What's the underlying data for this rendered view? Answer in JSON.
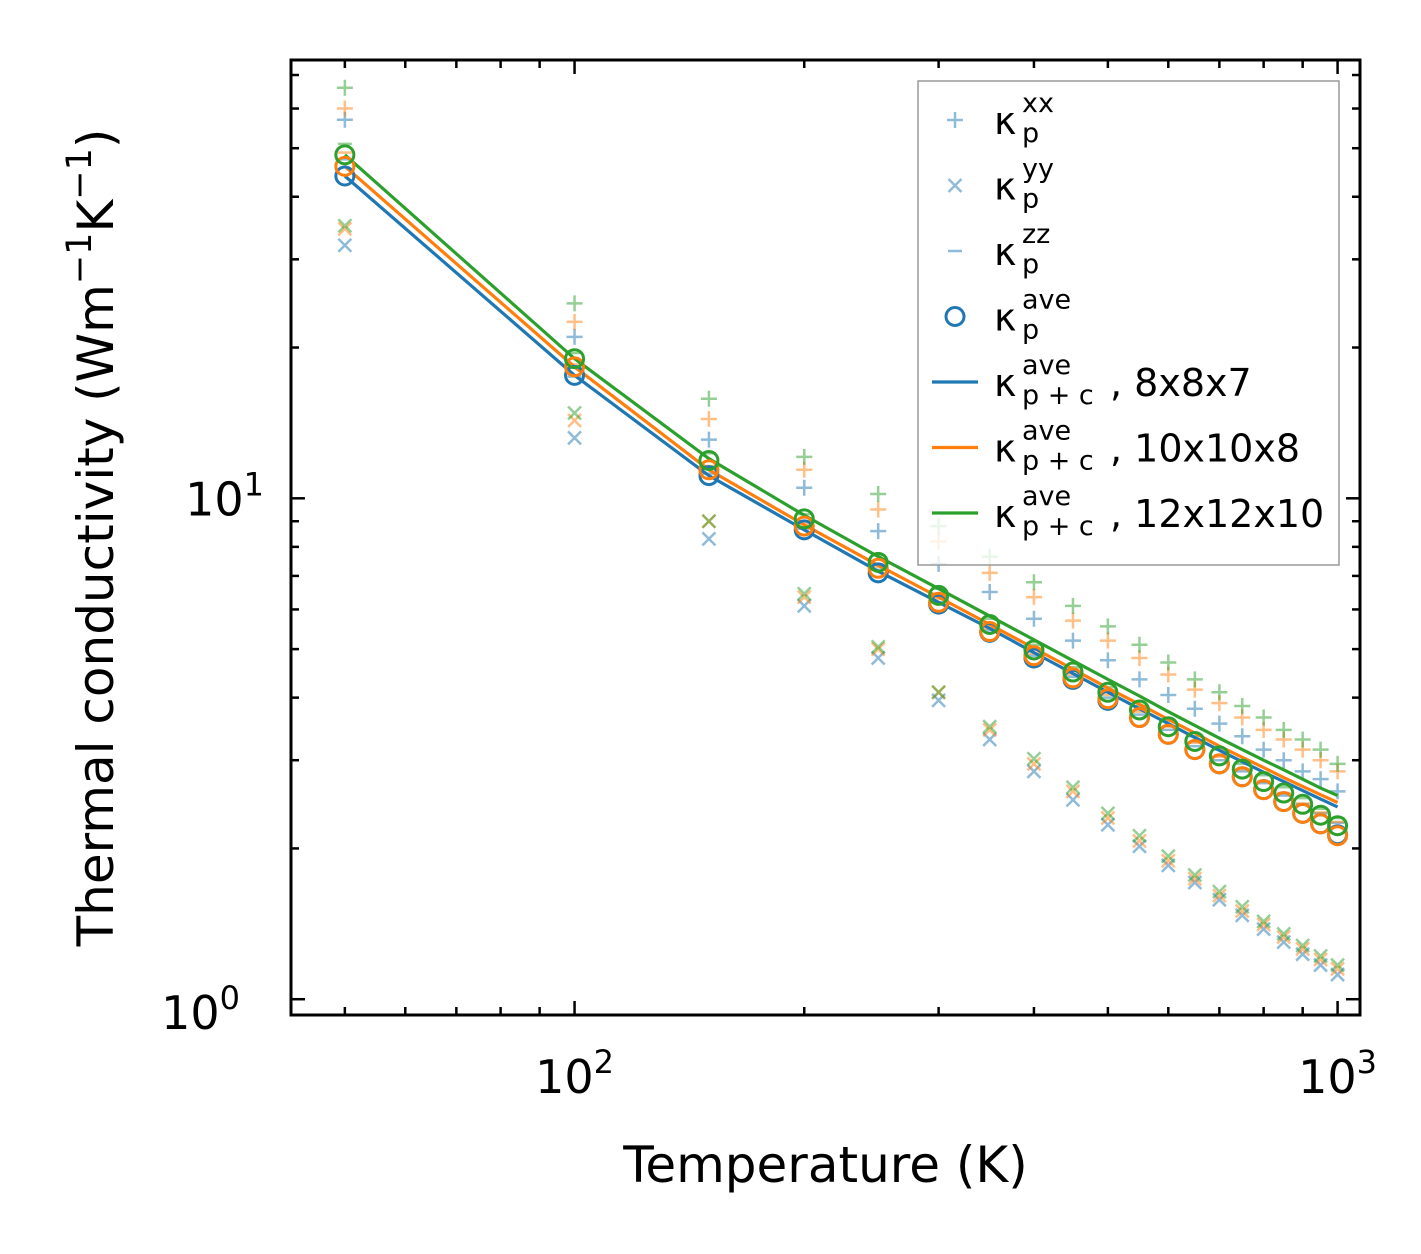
{
  "chart_data": {
    "type": "scatter",
    "xscale": "log",
    "yscale": "log",
    "xlim": [
      42.5,
      1070
    ],
    "ylim": [
      0.93,
      75
    ],
    "xlabel": "Temperature (K)",
    "ylabel": {
      "base": "Thermal conductivity (Wm",
      "sup1": "−1",
      "mid": "K",
      "sup2": "−1",
      "end": ")"
    },
    "xticks": [
      {
        "value": 100,
        "base": "10",
        "exp": "2"
      },
      {
        "value": 1000,
        "base": "10",
        "exp": "3"
      }
    ],
    "yticks": [
      {
        "value": 1,
        "base": "10",
        "exp": "0"
      },
      {
        "value": 10,
        "base": "10",
        "exp": "1"
      }
    ],
    "x": [
      50,
      100,
      150,
      200,
      250,
      300,
      350,
      400,
      450,
      500,
      550,
      600,
      650,
      700,
      750,
      800,
      850,
      900,
      950,
      1000
    ],
    "colors": {
      "8x8x7": "#1f77b4",
      "10x10x8": "#ff7f0e",
      "12x12x10": "#2ca02c"
    },
    "series": [
      {
        "name": "8x8x7",
        "kxx": [
          57,
          21,
          13.1,
          10.5,
          8.6,
          7.4,
          6.5,
          5.75,
          5.2,
          4.75,
          4.35,
          4.05,
          3.8,
          3.55,
          3.35,
          3.15,
          3.0,
          2.85,
          2.75,
          2.6
        ],
        "kyy": [
          32,
          13.2,
          8.3,
          6.1,
          4.8,
          3.95,
          3.3,
          2.85,
          2.5,
          2.23,
          2.02,
          1.85,
          1.71,
          1.58,
          1.47,
          1.38,
          1.3,
          1.23,
          1.17,
          1.12
        ],
        "kzz": [
          47.5,
          17.5,
          11.2,
          8.7,
          7.2,
          6.2,
          5.45,
          4.85,
          4.4,
          4.0,
          3.7,
          3.45,
          3.2,
          3.0,
          2.85,
          2.7,
          2.55,
          2.45,
          2.35,
          2.25
        ],
        "kave": [
          44,
          17.6,
          11.1,
          8.65,
          7.1,
          6.15,
          5.4,
          4.8,
          4.35,
          3.95,
          3.65,
          3.38,
          3.15,
          2.95,
          2.78,
          2.62,
          2.48,
          2.35,
          2.24,
          2.13
        ],
        "line": [
          44,
          17.6,
          11.1,
          8.65,
          7.15,
          6.2,
          5.5,
          4.92,
          4.47,
          4.1,
          3.8,
          3.55,
          3.33,
          3.14,
          2.98,
          2.84,
          2.72,
          2.61,
          2.51,
          2.42
        ]
      },
      {
        "name": "10x10x8",
        "kxx": [
          60,
          22.5,
          14.4,
          11.4,
          9.5,
          8.2,
          7.1,
          6.35,
          5.7,
          5.2,
          4.8,
          4.45,
          4.15,
          3.9,
          3.65,
          3.45,
          3.3,
          3.15,
          3.0,
          2.85
        ],
        "kyy": [
          34.5,
          14.3,
          9.0,
          6.35,
          5.0,
          4.1,
          3.45,
          2.95,
          2.6,
          2.3,
          2.07,
          1.89,
          1.74,
          1.61,
          1.5,
          1.41,
          1.33,
          1.26,
          1.2,
          1.15
        ],
        "kzz": [
          49,
          18.5,
          11.6,
          8.9,
          7.3,
          6.3,
          5.5,
          4.9,
          4.45,
          4.05,
          3.75,
          3.5,
          3.25,
          3.05,
          2.88,
          2.72,
          2.58,
          2.46,
          2.36,
          2.26
        ],
        "kave": [
          46,
          18.3,
          11.4,
          8.8,
          7.25,
          6.2,
          5.42,
          4.85,
          4.38,
          3.98,
          3.65,
          3.38,
          3.15,
          2.95,
          2.78,
          2.62,
          2.48,
          2.35,
          2.24,
          2.12
        ],
        "line": [
          46,
          18.3,
          11.4,
          8.85,
          7.35,
          6.35,
          5.6,
          5.02,
          4.56,
          4.18,
          3.88,
          3.62,
          3.4,
          3.2,
          3.04,
          2.9,
          2.77,
          2.66,
          2.56,
          2.47
        ]
      },
      {
        "name": "12x12x10",
        "kxx": [
          66,
          24.5,
          15.8,
          12.1,
          10.2,
          8.8,
          7.65,
          6.8,
          6.1,
          5.55,
          5.1,
          4.7,
          4.35,
          4.1,
          3.85,
          3.65,
          3.45,
          3.3,
          3.15,
          2.95
        ],
        "kyy": [
          35,
          14.8,
          9.0,
          6.45,
          5.05,
          4.1,
          3.5,
          3.02,
          2.65,
          2.35,
          2.12,
          1.93,
          1.77,
          1.64,
          1.53,
          1.43,
          1.35,
          1.28,
          1.22,
          1.17
        ],
        "kzz": [
          51,
          19.5,
          12.3,
          9.3,
          7.7,
          6.6,
          5.75,
          5.1,
          4.6,
          4.2,
          3.85,
          3.6,
          3.35,
          3.15,
          2.95,
          2.8,
          2.65,
          2.52,
          2.4,
          2.3
        ],
        "kave": [
          48.5,
          19.0,
          11.9,
          9.1,
          7.45,
          6.4,
          5.6,
          4.98,
          4.5,
          4.1,
          3.78,
          3.5,
          3.27,
          3.06,
          2.88,
          2.72,
          2.58,
          2.45,
          2.33,
          2.22
        ],
        "line": [
          48.5,
          19.0,
          12.0,
          9.25,
          7.65,
          6.6,
          5.82,
          5.22,
          4.74,
          4.35,
          4.03,
          3.75,
          3.52,
          3.32,
          3.15,
          3.0,
          2.87,
          2.75,
          2.64,
          2.55
        ]
      }
    ],
    "legend": {
      "position": "upper right",
      "entries": [
        {
          "marker": "plus",
          "color": "#1f77b4",
          "base": "κ",
          "sub": "p",
          "sup": "xx",
          "suffix": ""
        },
        {
          "marker": "x",
          "color": "#1f77b4",
          "base": "κ",
          "sub": "p",
          "sup": "yy",
          "suffix": ""
        },
        {
          "marker": "dash",
          "color": "#1f77b4",
          "base": "κ",
          "sub": "p",
          "sup": "zz",
          "suffix": ""
        },
        {
          "marker": "circle",
          "color": "#1f77b4",
          "base": "κ",
          "sub": "p",
          "sup": "ave",
          "suffix": ""
        },
        {
          "marker": "line",
          "color": "#1f77b4",
          "base": "κ",
          "sub": "p + c",
          "sup": "ave",
          "suffix": ", 8x8x7"
        },
        {
          "marker": "line",
          "color": "#ff7f0e",
          "base": "κ",
          "sub": "p + c",
          "sup": "ave",
          "suffix": ", 10x10x8"
        },
        {
          "marker": "line",
          "color": "#2ca02c",
          "base": "κ",
          "sub": "p + c",
          "sup": "ave",
          "suffix": ", 12x12x10"
        }
      ]
    }
  }
}
